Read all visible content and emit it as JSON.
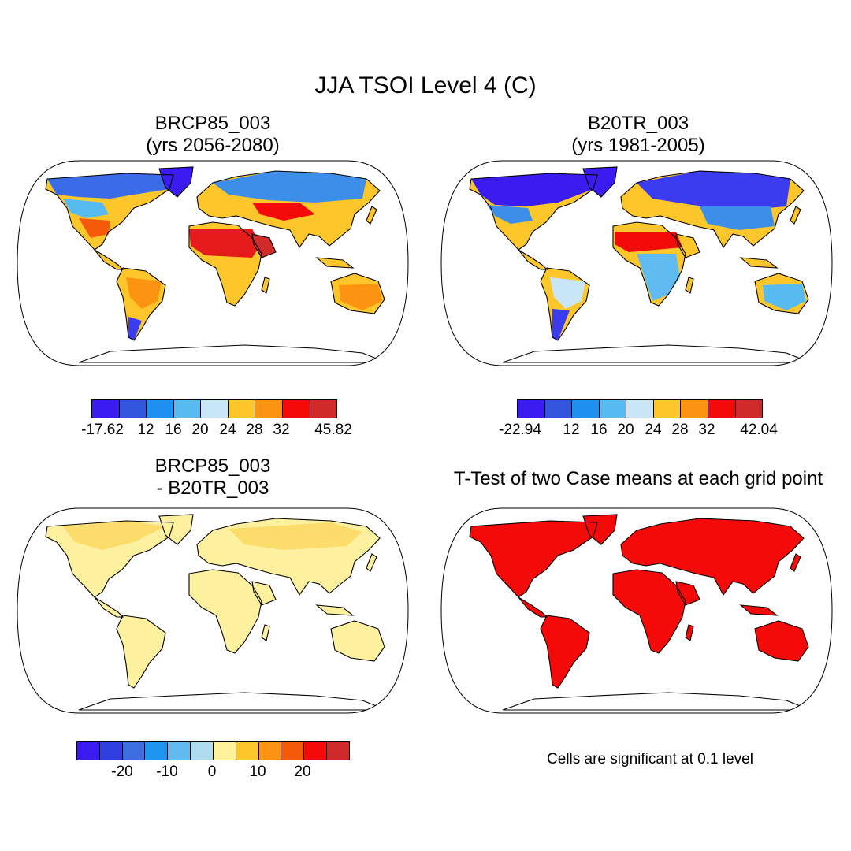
{
  "title": "JJA TSOI Level 4 (C)",
  "panels": [
    {
      "id": "brcp85",
      "title_line1": "BRCP85_003",
      "title_line2": "(yrs 2056-2080)",
      "palette": [
        "#3b1cf0",
        "#3355dd",
        "#1e90f0",
        "#57bbf0",
        "#c8e6f5",
        "#fdc72c",
        "#fc9412",
        "#f50a0a",
        "#d02a2a"
      ],
      "labels": [
        "-17.62",
        "12",
        "16",
        "20",
        "24",
        "28",
        "32",
        "45.82"
      ]
    },
    {
      "id": "b20tr",
      "title_line1": "B20TR_003",
      "title_line2": "(yrs 1981-2005)",
      "palette": [
        "#3b1cf0",
        "#3355dd",
        "#1e90f0",
        "#57bbf0",
        "#c8e6f5",
        "#fdc72c",
        "#fc9412",
        "#f50a0a",
        "#d02a2a"
      ],
      "labels": [
        "-22.94",
        "12",
        "16",
        "20",
        "24",
        "28",
        "32",
        "42.04"
      ]
    },
    {
      "id": "diff",
      "title_line1": "BRCP85_003",
      "title_line2": "- B20TR_003",
      "palette": [
        "#3b1cf0",
        "#3040e0",
        "#3c6ee0",
        "#1e96f0",
        "#60bcf0",
        "#b0dcf0",
        "#fff29a",
        "#fdc72c",
        "#fc9412",
        "#f55a0a",
        "#f50a0a",
        "#d02a2a"
      ],
      "labels": [
        "-20",
        "-10",
        "0",
        "10",
        "20"
      ]
    },
    {
      "id": "ttest",
      "title_line1": "T-Test of two Case means at each grid point",
      "note": "Cells are significant at 0.1 level"
    }
  ],
  "colors": {
    "ocean": "#ffffff",
    "diff_land": "#fdf1a0",
    "ttest_land": "#f50a0a",
    "coast": "#000000"
  },
  "chart_data": [
    {
      "type": "heatmap",
      "title": "BRCP85_003 (yrs 2056-2080)",
      "variable": "JJA TSOI Level 4 (C)",
      "colorbar_range": [
        -17.62,
        45.82
      ],
      "colorbar_levels": [
        12,
        16,
        20,
        24,
        28,
        32
      ]
    },
    {
      "type": "heatmap",
      "title": "B20TR_003 (yrs 1981-2005)",
      "variable": "JJA TSOI Level 4 (C)",
      "colorbar_range": [
        -22.94,
        42.04
      ],
      "colorbar_levels": [
        12,
        16,
        20,
        24,
        28,
        32
      ]
    },
    {
      "type": "heatmap",
      "title": "BRCP85_003 - B20TR_003",
      "colorbar_ticks": [
        -20,
        -10,
        0,
        10,
        20
      ]
    },
    {
      "type": "heatmap",
      "title": "T-Test of two Case means at each grid point",
      "significance_level": 0.1
    }
  ]
}
